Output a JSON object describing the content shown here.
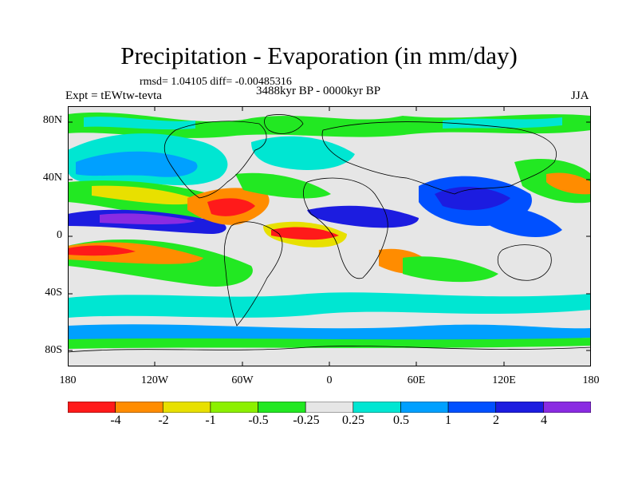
{
  "header": {
    "title": "Precipitation - Evaporation (in mm/day)",
    "stats": "rmsd= 1.04105 diff= -0.00485316",
    "expt": "Expt = tEWtw-tevta",
    "period": "3488kyr BP - 0000kyr BP",
    "season": "JJA"
  },
  "axes": {
    "lat_labels": [
      "80N",
      "40N",
      "0",
      "40S",
      "80S"
    ],
    "lon_labels": [
      "180",
      "120W",
      "60W",
      "0",
      "60E",
      "120E",
      "180"
    ]
  },
  "colorbar": {
    "labels": [
      "-4",
      "-2",
      "-1",
      "-0.5",
      "-0.25",
      "0.25",
      "0.5",
      "1",
      "2",
      "4"
    ],
    "colors": [
      "#ff1a1a",
      "#ff8c00",
      "#e8e000",
      "#8cf000",
      "#22e822",
      "#e6e6e6",
      "#00e6d2",
      "#00a0ff",
      "#0050ff",
      "#1c1ce0",
      "#8a2be2"
    ]
  }
}
